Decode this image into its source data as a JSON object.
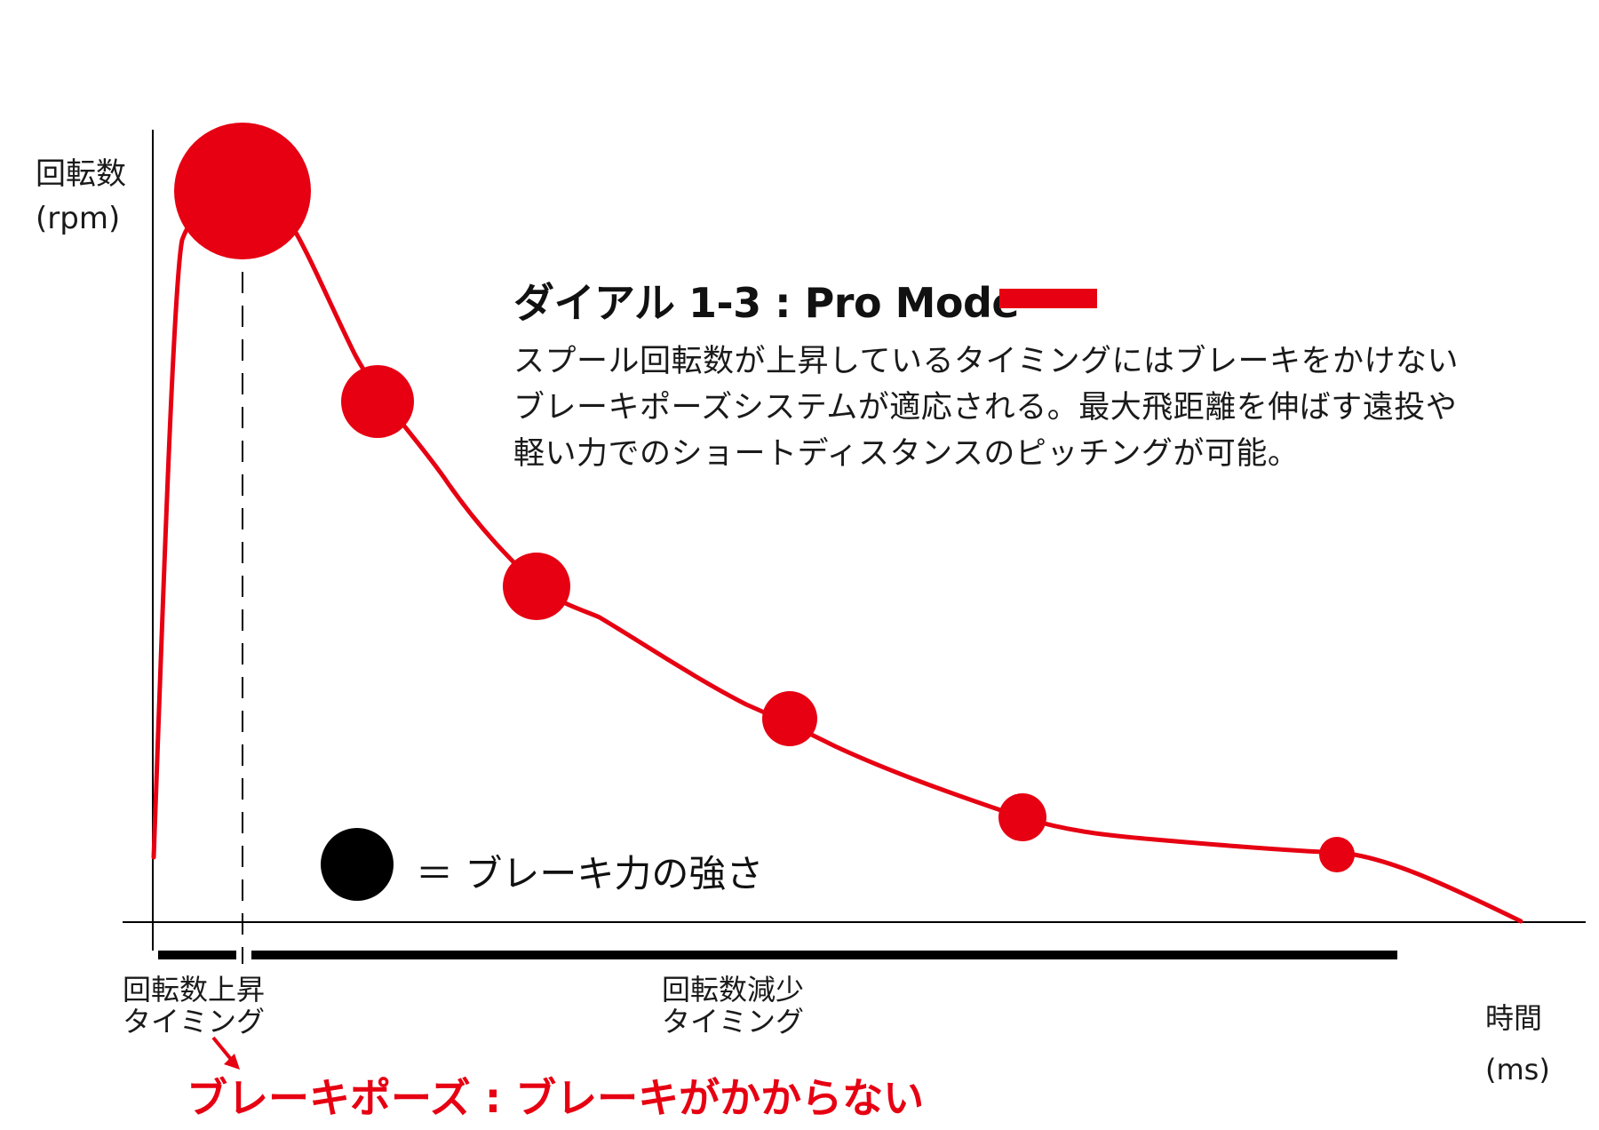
{
  "axes": {
    "y_label": "回転数",
    "y_unit": "(rpm)",
    "x_label": "時間",
    "x_unit": "(ms)"
  },
  "mode": {
    "title": "ダイアル 1-3 : Pro Mode",
    "line_color": "#e60012",
    "description": [
      "スプール回転数が上昇しているタイミングにはブレーキをかけない",
      "ブレーキポーズシステムが適応される。最大飛距離を伸ばす遠投や",
      "軽い力でのショートディスタンスのピッチングが可能。"
    ]
  },
  "legend": {
    "text": "＝ ブレーキ力の強さ",
    "marker_color": "#000000"
  },
  "phases": {
    "rising": [
      "回転数上昇",
      "タイミング"
    ],
    "falling": [
      "回転数減少",
      "タイミング"
    ]
  },
  "brake_pause_label": "ブレーキポーズ : ブレーキがかからない",
  "colors": {
    "accent_red": "#e60012",
    "ink": "#000000"
  }
}
